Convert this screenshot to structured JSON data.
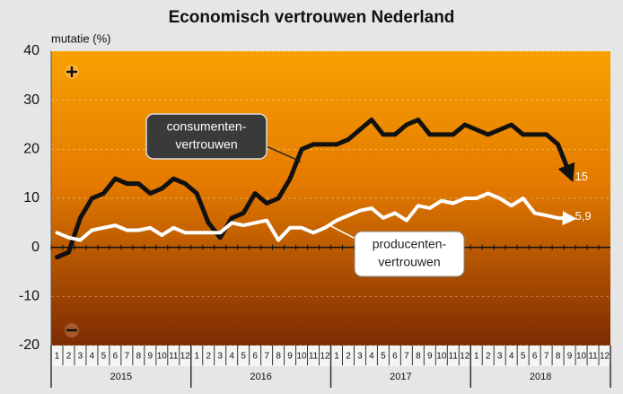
{
  "chart_data": {
    "type": "line",
    "title": "Economisch vertrouwen Nederland",
    "ylabel": "mutatie (%)",
    "categories": [
      "1",
      "2",
      "3",
      "4",
      "5",
      "6",
      "7",
      "8",
      "9",
      "10",
      "11",
      "12",
      "1",
      "2",
      "3",
      "4",
      "5",
      "6",
      "7",
      "8",
      "9",
      "10",
      "11",
      "12",
      "1",
      "2",
      "3",
      "4",
      "5",
      "6",
      "7",
      "8",
      "9",
      "10",
      "11",
      "12",
      "1",
      "2",
      "3",
      "4",
      "5",
      "6",
      "7",
      "8",
      "9",
      "10",
      "11",
      "12"
    ],
    "years": [
      "2015",
      "2016",
      "2017",
      "2018"
    ],
    "series": [
      {
        "name": "consumentenvertrouwen",
        "color": "#111111",
        "values": [
          -2,
          -1,
          6,
          10,
          11,
          14,
          13,
          13,
          11,
          12,
          14,
          13,
          11,
          5,
          2,
          6,
          7,
          11,
          9,
          10,
          14,
          20,
          21,
          21,
          21,
          22,
          24,
          26,
          23,
          23,
          25,
          26,
          23,
          23,
          23,
          25,
          24,
          23,
          24,
          25,
          23,
          23,
          23,
          21,
          15,
          null,
          null,
          null
        ],
        "value_labels": [
          null,
          null,
          null,
          null,
          null,
          null,
          null,
          null,
          null,
          null,
          null,
          null,
          null,
          null,
          null,
          null,
          null,
          null,
          null,
          null,
          null,
          null,
          null,
          null,
          null,
          null,
          null,
          null,
          null,
          null,
          null,
          null,
          null,
          null,
          null,
          null,
          null,
          null,
          null,
          null,
          null,
          null,
          null,
          null,
          "15",
          null,
          null,
          null
        ]
      },
      {
        "name": "producentenvertrouwen",
        "color": "#ffffff",
        "values": [
          3,
          2,
          1.5,
          3.5,
          4,
          4.5,
          3.5,
          3.5,
          4,
          2.5,
          4,
          3,
          3,
          3,
          3,
          5,
          4.5,
          5,
          5.5,
          1.5,
          4,
          4,
          3,
          4,
          5.5,
          6.5,
          7.5,
          8,
          6,
          7,
          5.5,
          8.5,
          8,
          9.5,
          9,
          10,
          10,
          11,
          10,
          8.5,
          10,
          7,
          6.5,
          6,
          5.9,
          null,
          null,
          null
        ],
        "value_labels": [
          null,
          null,
          null,
          null,
          null,
          null,
          null,
          null,
          null,
          null,
          null,
          null,
          null,
          null,
          null,
          null,
          null,
          null,
          null,
          null,
          null,
          null,
          null,
          null,
          null,
          null,
          null,
          null,
          null,
          null,
          null,
          null,
          null,
          null,
          null,
          null,
          null,
          null,
          null,
          null,
          null,
          null,
          null,
          null,
          "5,9",
          null,
          null,
          null
        ]
      }
    ],
    "annotations": [
      {
        "lines": [
          "consumenten-",
          "vertrouwen"
        ]
      },
      {
        "lines": [
          "producenten-",
          "vertrouwen"
        ]
      }
    ],
    "ylim": [
      -20,
      40
    ],
    "yticks": [
      -20,
      -10,
      0,
      10,
      20,
      30,
      40
    ],
    "grid": true
  }
}
